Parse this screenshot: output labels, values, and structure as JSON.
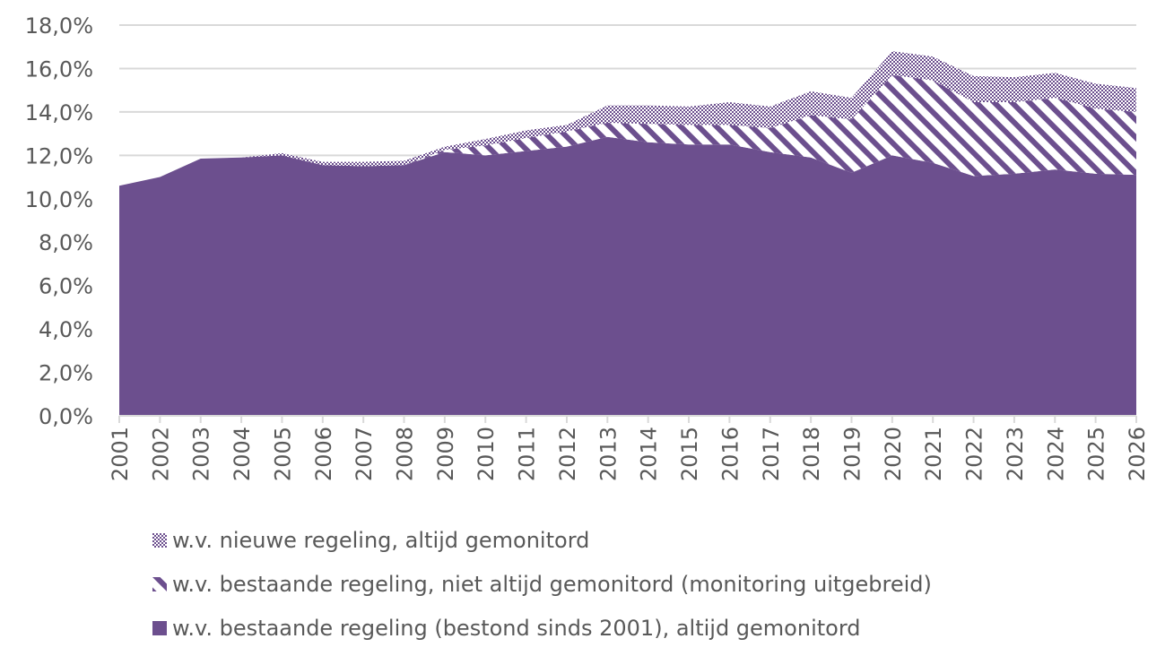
{
  "colors": {
    "series": "#6c4f8e",
    "grid": "#d9d9d9",
    "axis": "#d9d9d9",
    "text": "#595959"
  },
  "chart_data": {
    "type": "area",
    "stacked": true,
    "x": [
      "2001",
      "2002",
      "2003",
      "2004",
      "2005",
      "2006",
      "2007",
      "2008",
      "2009",
      "2010",
      "2011",
      "2012",
      "2013",
      "2014",
      "2015",
      "2016",
      "2017",
      "2018",
      "2019",
      "2020",
      "2021",
      "2022",
      "2023",
      "2024",
      "2025",
      "2026"
    ],
    "ylim": [
      0,
      18
    ],
    "yticks": [
      "0,0%",
      "2,0%",
      "4,0%",
      "6,0%",
      "8,0%",
      "10,0%",
      "12,0%",
      "14,0%",
      "16,0%",
      "18,0%"
    ],
    "grid": true,
    "legend_position": "bottom",
    "series": [
      {
        "name": "w.v. bestaande regeling (bestond sinds 2001), altijd gemonitord",
        "pattern": "solid",
        "values": [
          10.6,
          11.0,
          11.85,
          11.9,
          12.0,
          11.55,
          11.5,
          11.55,
          12.15,
          12.0,
          12.2,
          12.4,
          12.85,
          12.6,
          12.5,
          12.5,
          12.15,
          11.9,
          11.2,
          12.0,
          11.65,
          11.05,
          11.15,
          11.35,
          11.15,
          11.1
        ]
      },
      {
        "name": "w.v. bestaande regeling, niet altijd gemonitord (monitoring uitgebreid)",
        "pattern": "diagonal-stripes",
        "values": [
          0,
          0,
          0,
          0,
          0,
          0,
          0,
          0,
          0.1,
          0.45,
          0.6,
          0.7,
          0.65,
          0.85,
          0.9,
          0.9,
          1.1,
          1.95,
          2.45,
          3.7,
          3.8,
          3.4,
          3.3,
          3.3,
          3.0,
          2.9
        ]
      },
      {
        "name": "w.v. nieuwe regeling, altijd gemonitord",
        "pattern": "checker",
        "values": [
          0,
          0,
          0,
          0,
          0.1,
          0.15,
          0.2,
          0.2,
          0.15,
          0.3,
          0.35,
          0.3,
          0.8,
          0.85,
          0.85,
          1.05,
          1.0,
          1.1,
          1.0,
          1.1,
          1.1,
          1.2,
          1.15,
          1.15,
          1.15,
          1.1
        ]
      }
    ]
  },
  "legend": {
    "items": [
      {
        "label": "w.v. nieuwe regeling, altijd gemonitord",
        "swatch": "checker-swatch"
      },
      {
        "label": "w.v. bestaande regeling, niet altijd gemonitord (monitoring uitgebreid)",
        "swatch": "stripes-swatch"
      },
      {
        "label": "w.v. bestaande regeling (bestond sinds 2001), altijd gemonitord",
        "swatch": "solid-swatch"
      }
    ]
  }
}
